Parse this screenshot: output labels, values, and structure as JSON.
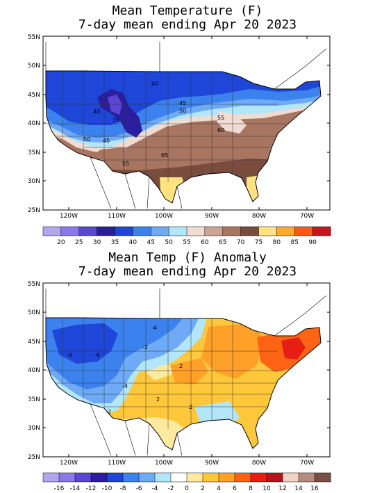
{
  "panel1": {
    "title_line1": "Mean Temperature (F)",
    "title_line2": "7-day mean ending Apr 20 2023",
    "lat_labels": [
      "55N",
      "50N",
      "45N",
      "40N",
      "35N",
      "30N",
      "25N"
    ],
    "lon_labels": [
      "120W",
      "110W",
      "100W",
      "90W",
      "80W",
      "70W"
    ],
    "contour_labels": [
      {
        "text": "40"
      },
      {
        "text": "40"
      },
      {
        "text": "45"
      },
      {
        "text": "50"
      },
      {
        "text": "35"
      },
      {
        "text": "45"
      },
      {
        "text": "50"
      },
      {
        "text": "55"
      },
      {
        "text": "65"
      },
      {
        "text": "55"
      },
      {
        "text": "60"
      }
    ],
    "legend": {
      "colors": [
        "#b3a5ef",
        "#8a78ea",
        "#5a46d2",
        "#2b1e9e",
        "#1e46d8",
        "#3c82ee",
        "#6eaaf5",
        "#b4e6fa",
        "#f0dcd2",
        "#cda593",
        "#a87561",
        "#7a4c3e",
        "#ffe37e",
        "#ffaa28",
        "#ff5a14",
        "#c8141e"
      ],
      "labels": [
        "20",
        "25",
        "30",
        "35",
        "40",
        "45",
        "50",
        "55",
        "60",
        "65",
        "70",
        "75",
        "80",
        "85",
        "90"
      ]
    }
  },
  "panel2": {
    "title_line1": "Mean Temp (F) Anomaly",
    "title_line2": "7-day mean ending Apr 20 2023",
    "lat_labels": [
      "55N",
      "50N",
      "45N",
      "40N",
      "35N",
      "30N",
      "25N"
    ],
    "lon_labels": [
      "120W",
      "110W",
      "100W",
      "90W",
      "80W",
      "70W"
    ],
    "contour_labels": [
      {
        "text": "-4"
      },
      {
        "text": "-2"
      },
      {
        "text": "-6"
      },
      {
        "text": "-6"
      },
      {
        "text": "2"
      },
      {
        "text": "-4"
      },
      {
        "text": "-2"
      },
      {
        "text": "2"
      },
      {
        "text": "2"
      }
    ],
    "legend": {
      "colors": [
        "#b3a5ef",
        "#8a78ea",
        "#5a46d2",
        "#2b1e9e",
        "#1e46d8",
        "#3c82ee",
        "#6eaaf5",
        "#b4e6fa",
        "#ffffff",
        "#ffeaa0",
        "#ffc83c",
        "#ffa028",
        "#ff6414",
        "#e61e14",
        "#b4141e",
        "#f0d2c8",
        "#b48c80",
        "#785046"
      ],
      "labels": [
        "-16",
        "-14",
        "-12",
        "-10",
        "-8",
        "-6",
        "-4",
        "-2",
        "0",
        "2",
        "4",
        "6",
        "8",
        "10",
        "12",
        "14",
        "16"
      ]
    }
  }
}
